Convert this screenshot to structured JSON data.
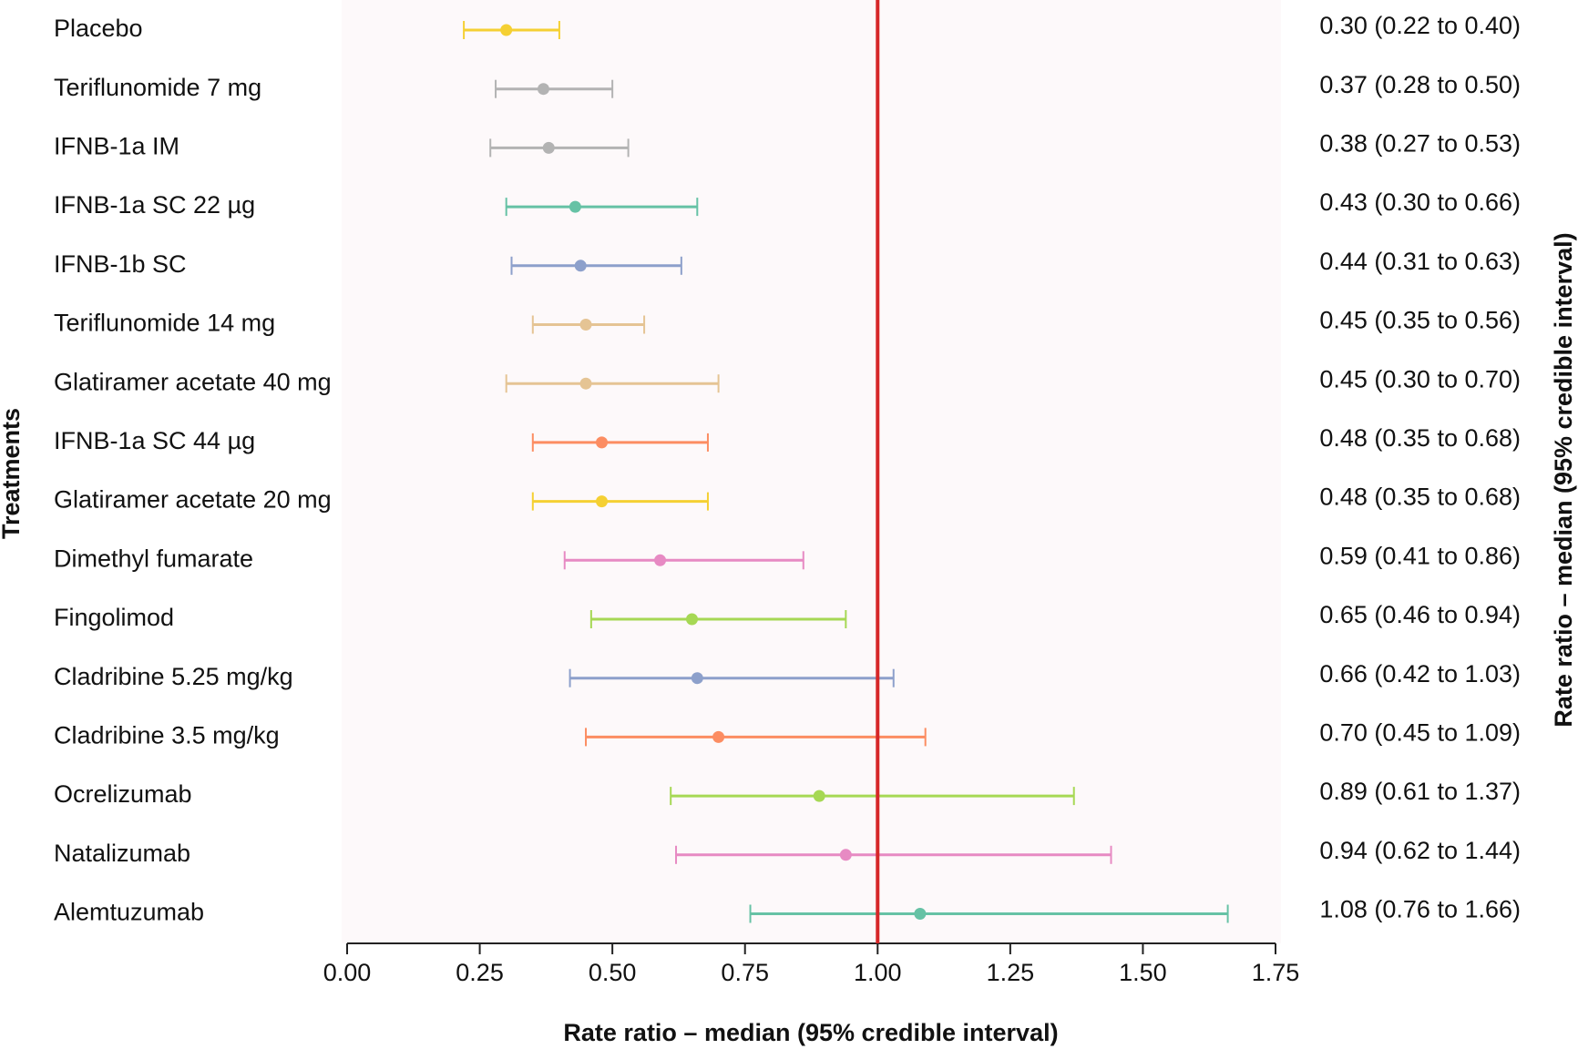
{
  "chart_data": {
    "type": "forest",
    "y_label": "Treatments",
    "x_label": "Rate ratio – median (95% credible interval)",
    "right_label": "Rate ratio – median (95% credible interval)",
    "categories": [
      "Placebo",
      "Teriflunomide 7 mg",
      "IFNB-1a IM",
      "IFNB-1a SC 22 µg",
      "IFNB-1b SC",
      "Teriflunomide 14 mg",
      "Glatiramer acetate 40 mg",
      "IFNB-1a SC 44 µg",
      "Glatiramer acetate 20 mg",
      "Dimethyl fumarate",
      "Fingolimod",
      "Cladribine 5.25 mg/kg",
      "Cladribine 3.5 mg/kg",
      "Ocrelizumab",
      "Natalizumab",
      "Alemtuzumab"
    ],
    "values": [
      0.3,
      0.37,
      0.38,
      0.43,
      0.44,
      0.45,
      0.45,
      0.48,
      0.48,
      0.59,
      0.65,
      0.66,
      0.7,
      0.89,
      0.94,
      1.08
    ],
    "lower": [
      0.22,
      0.28,
      0.27,
      0.3,
      0.31,
      0.35,
      0.3,
      0.35,
      0.35,
      0.41,
      0.46,
      0.42,
      0.45,
      0.61,
      0.62,
      0.76
    ],
    "upper": [
      0.4,
      0.5,
      0.53,
      0.66,
      0.63,
      0.56,
      0.7,
      0.68,
      0.68,
      0.86,
      0.94,
      1.03,
      1.09,
      1.37,
      1.44,
      1.66
    ],
    "value_labels": [
      "0.30 (0.22 to 0.40)",
      "0.37 (0.28 to 0.50)",
      "0.38 (0.27 to 0.53)",
      "0.43 (0.30 to 0.66)",
      "0.44 (0.31 to 0.63)",
      "0.45 (0.35 to 0.56)",
      "0.45 (0.30 to 0.70)",
      "0.48 (0.35 to 0.68)",
      "0.48 (0.35 to 0.68)",
      "0.59 (0.41 to 0.86)",
      "0.65 (0.46 to 0.94)",
      "0.66 (0.42 to 1.03)",
      "0.70 (0.45 to 1.09)",
      "0.89 (0.61 to 1.37)",
      "0.94 (0.62 to 1.44)",
      "1.08 (0.76 to 1.66)"
    ],
    "colors": [
      "#f5d033",
      "#b3b3b3",
      "#b3b3b3",
      "#66c2a5",
      "#8da0cb",
      "#e5c494",
      "#e5c494",
      "#fc8d62",
      "#f5d033",
      "#e78ac3",
      "#a6d854",
      "#8da0cb",
      "#fc8d62",
      "#a6d854",
      "#e78ac3",
      "#66c2a5"
    ],
    "xlim": [
      0,
      1.75
    ],
    "xticks": [
      {
        "value": 0,
        "label": "0.00"
      },
      {
        "value": 0.25,
        "label": "0.25"
      },
      {
        "value": 0.5,
        "label": "0.50"
      },
      {
        "value": 0.75,
        "label": "0.75"
      },
      {
        "value": 1,
        "label": "1.00"
      },
      {
        "value": 1.25,
        "label": "1.25"
      },
      {
        "value": 1.5,
        "label": "1.50"
      },
      {
        "value": 1.75,
        "label": "1.75"
      }
    ],
    "reference_line": 1,
    "reference_color": "#d62728"
  }
}
